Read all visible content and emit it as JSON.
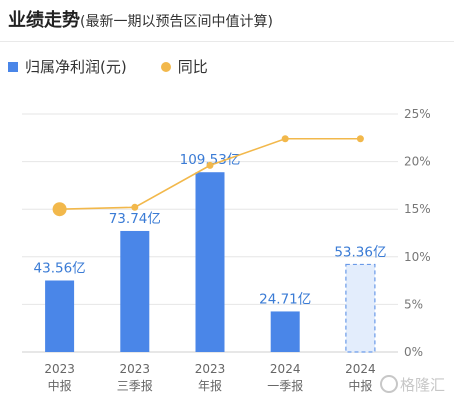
{
  "header": {
    "title": "业绩走势",
    "subtitle": "(最新一期以预告区间中值计算)"
  },
  "legend": {
    "series1": "归属净利润(元)",
    "series2": "同比"
  },
  "colors": {
    "bar": "#4a86e8",
    "bar_forecast_fill": "#e3edfc",
    "bar_forecast_stroke": "#6a9ae8",
    "line": "#f2b84b",
    "label": "#3a7bd5",
    "axis_text": "#777777",
    "grid": "#e6e6e6"
  },
  "watermark": "格隆汇",
  "chart_data": {
    "type": "bar",
    "categories": [
      [
        "2023",
        "中报"
      ],
      [
        "2023",
        "三季报"
      ],
      [
        "2023",
        "年报"
      ],
      [
        "2024",
        "一季报"
      ],
      [
        "2024",
        "中报"
      ]
    ],
    "series": [
      {
        "name": "归属净利润(元)",
        "type": "bar",
        "values": [
          43.56,
          73.74,
          109.53,
          24.71,
          53.36
        ],
        "labels": [
          "43.56亿",
          "73.74亿",
          "109.53亿",
          "24.71亿",
          "53.36亿"
        ],
        "forecast": [
          false,
          false,
          false,
          false,
          true
        ]
      },
      {
        "name": "同比",
        "type": "line",
        "axis": "right",
        "values": [
          15.0,
          15.2,
          19.6,
          22.4,
          22.4
        ]
      }
    ],
    "y_right": {
      "range": [
        0,
        25
      ],
      "ticks": [
        "0%",
        "5%",
        "10%",
        "15%",
        "20%",
        "25%"
      ]
    },
    "y_left_range": [
      0,
      145
    ],
    "grid": true,
    "legend_position": "top-left"
  }
}
